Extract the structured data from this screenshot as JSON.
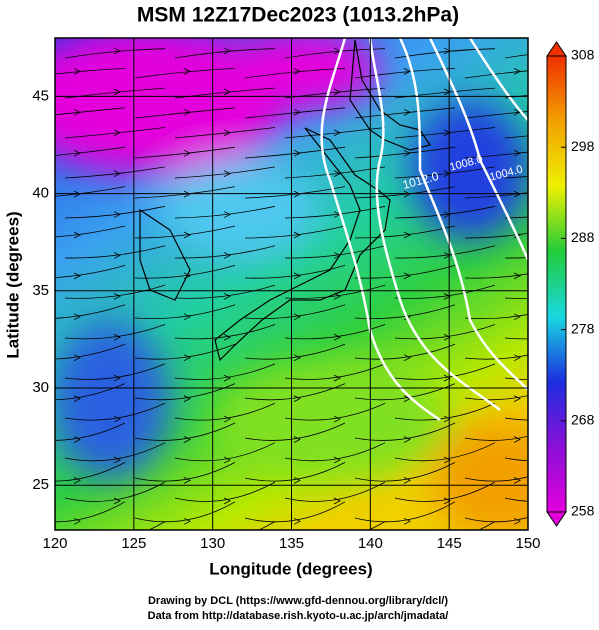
{
  "title": "MSM 12Z17Dec2023 (1013.2hPa)",
  "x_axis": {
    "label": "Longitude (degrees)",
    "lim": [
      120,
      150
    ],
    "ticks": [
      120,
      125,
      130,
      135,
      140,
      145,
      150
    ]
  },
  "y_axis": {
    "label": "Latitude  (degrees)",
    "lim": [
      22.7,
      48
    ],
    "ticks": [
      25,
      30,
      35,
      40,
      45
    ]
  },
  "colorbar": {
    "lim": [
      258,
      308
    ],
    "ticks": [
      258,
      268,
      278,
      288,
      298,
      308
    ],
    "colors": [
      "#e400dc",
      "#8a10d8",
      "#1c2ee0",
      "#18d8e0",
      "#22cc3a",
      "#eef000",
      "#f2a000",
      "#f03000"
    ]
  },
  "contour_labels": [
    "1012.0",
    "1008.0",
    "1004.0"
  ],
  "credits": [
    "Drawing by DCL (https://www.gfd-dennou.org/library/dcl/)",
    "Data from http://database.rish.kyoto-u.ac.jp/arch/jmadata/"
  ]
}
